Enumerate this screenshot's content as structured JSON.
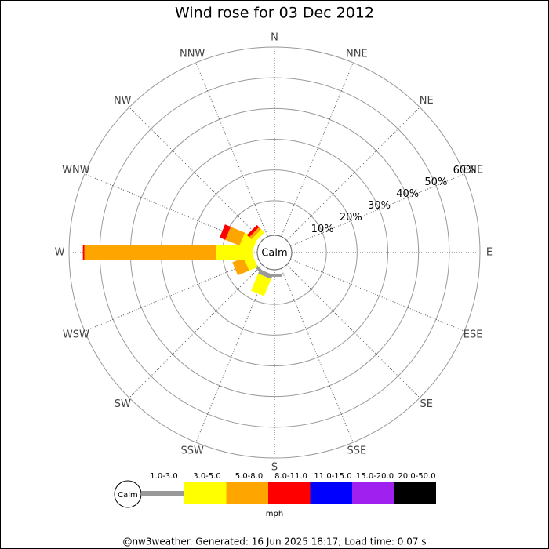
{
  "chart_data": {
    "type": "windrose",
    "title": "Wind rose for 03 Dec 2012",
    "directions": [
      "N",
      "NNE",
      "NE",
      "ENE",
      "E",
      "ESE",
      "SE",
      "SSE",
      "S",
      "SSW",
      "SW",
      "WSW",
      "W",
      "WNW",
      "NW",
      "NNW"
    ],
    "center_label": "Calm",
    "rlim": [
      0,
      60
    ],
    "rticks": [
      {
        "value": 10,
        "label": "10%"
      },
      {
        "value": 20,
        "label": "20%"
      },
      {
        "value": 30,
        "label": "30%"
      },
      {
        "value": 40,
        "label": "40%"
      },
      {
        "value": 50,
        "label": "50%"
      },
      {
        "value": 60,
        "label": "60%"
      }
    ],
    "series": [
      {
        "name": "1.0-3.0",
        "color": "#999999",
        "values": [
          0,
          0,
          0,
          0,
          0,
          0,
          0,
          0,
          1,
          1.5,
          1,
          0,
          0,
          0,
          0,
          0
        ]
      },
      {
        "name": "3.0-5.0",
        "color": "#ffff00",
        "values": [
          0,
          0,
          0,
          0,
          0,
          0,
          0,
          0,
          0,
          6,
          0,
          3,
          12,
          4.5,
          1.5,
          0
        ]
      },
      {
        "name": "5.0-8.0",
        "color": "#ffa500",
        "values": [
          0,
          0,
          0,
          0,
          0,
          0,
          0,
          0,
          0,
          0,
          0,
          4,
          43,
          5,
          1,
          0
        ]
      },
      {
        "name": "8.0-11.0",
        "color": "#ff0000",
        "values": [
          0,
          0,
          0,
          0,
          0,
          0,
          0,
          0,
          0,
          0,
          0,
          0,
          0.5,
          2,
          1,
          0
        ]
      },
      {
        "name": "11.0-15.0",
        "color": "#0000ff",
        "values": [
          0,
          0,
          0,
          0,
          0,
          0,
          0,
          0,
          0,
          0,
          0,
          0,
          0,
          0,
          0,
          0
        ]
      },
      {
        "name": "15.0-20.0",
        "color": "#a020f0",
        "values": [
          0,
          0,
          0,
          0,
          0,
          0,
          0,
          0,
          0,
          0,
          0,
          0,
          0,
          0,
          0,
          0
        ]
      },
      {
        "name": "20.0-50.0",
        "color": "#000000",
        "values": [
          0,
          0,
          0,
          0,
          0,
          0,
          0,
          0,
          0,
          0,
          0,
          0,
          0,
          0,
          0,
          0
        ]
      }
    ],
    "legend_calm": "Calm",
    "unit": "mph",
    "footer": "@nw3weather. Generated: 16 Jun 2025 18:17; Load time: 0.07 s"
  }
}
